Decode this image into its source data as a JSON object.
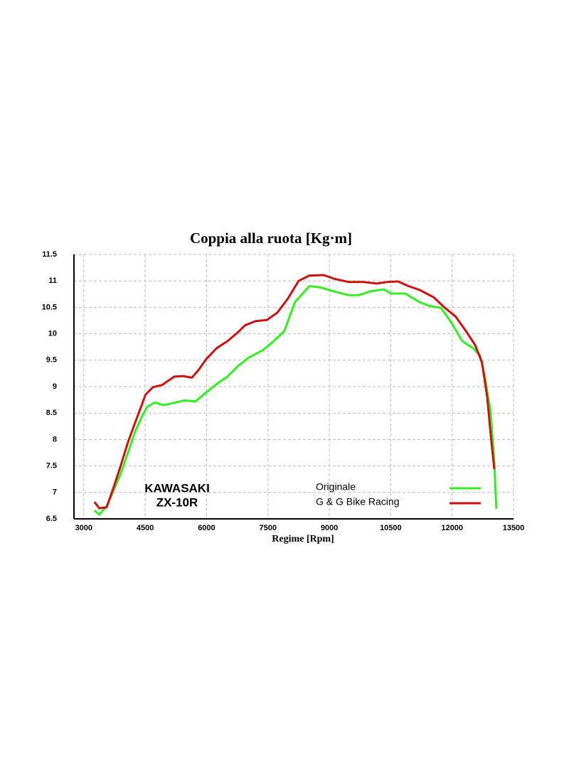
{
  "chart_data": {
    "type": "line",
    "title": "Coppia alla ruota [Kg·m]",
    "x_label": "Regime [Rpm]",
    "annotations": [
      "KAWASAKI",
      "ZX-10R"
    ],
    "xlim": [
      2760,
      13500
    ],
    "xticks": [
      3000,
      4500,
      6000,
      7500,
      9000,
      10500,
      12000,
      13500
    ],
    "ylim": [
      6.5,
      11.5
    ],
    "yticks": [
      6.5,
      7,
      7.5,
      8,
      8.5,
      9,
      9.5,
      10,
      10.5,
      11,
      11.5
    ],
    "grid": true,
    "series": [
      {
        "name": "Originale",
        "color": "#33ee22",
        "x": [
          3260,
          3380,
          3560,
          3730,
          3900,
          4080,
          4250,
          4430,
          4550,
          4740,
          4950,
          5120,
          5470,
          5730,
          5990,
          6250,
          6510,
          6770,
          7030,
          7380,
          7640,
          7900,
          8160,
          8510,
          8770,
          9120,
          9470,
          9730,
          9990,
          10330,
          10510,
          10860,
          11200,
          11470,
          11730,
          11990,
          12250,
          12510,
          12680,
          12800,
          12940,
          13030,
          13080
        ],
        "values": [
          6.66,
          6.58,
          6.74,
          7.04,
          7.35,
          7.75,
          8.14,
          8.45,
          8.62,
          8.7,
          8.65,
          8.68,
          8.74,
          8.72,
          8.89,
          9.05,
          9.19,
          9.39,
          9.55,
          9.69,
          9.86,
          10.05,
          10.6,
          10.9,
          10.88,
          10.8,
          10.73,
          10.73,
          10.8,
          10.84,
          10.76,
          10.76,
          10.6,
          10.52,
          10.49,
          10.2,
          9.86,
          9.73,
          9.59,
          9.19,
          8.52,
          7.58,
          6.69
        ]
      },
      {
        "name": "G & G Bike Racing",
        "color": "#cc1111",
        "x": [
          3260,
          3380,
          3560,
          3730,
          3900,
          4080,
          4250,
          4380,
          4510,
          4690,
          4910,
          5210,
          5430,
          5640,
          5810,
          5990,
          6250,
          6510,
          6770,
          6940,
          7200,
          7470,
          7730,
          7990,
          8250,
          8510,
          8860,
          9120,
          9470,
          9820,
          10160,
          10420,
          10680,
          10940,
          11200,
          11550,
          11810,
          12080,
          12330,
          12560,
          12730,
          12860,
          12940,
          13030
        ],
        "values": [
          6.82,
          6.7,
          6.72,
          7.1,
          7.5,
          7.95,
          8.31,
          8.58,
          8.85,
          8.99,
          9.03,
          9.19,
          9.2,
          9.17,
          9.32,
          9.52,
          9.73,
          9.86,
          10.03,
          10.16,
          10.24,
          10.26,
          10.4,
          10.67,
          11.0,
          11.1,
          11.11,
          11.04,
          10.98,
          10.98,
          10.95,
          10.98,
          10.99,
          10.9,
          10.83,
          10.69,
          10.5,
          10.33,
          10.06,
          9.79,
          9.46,
          8.78,
          8.11,
          7.44
        ]
      }
    ]
  }
}
